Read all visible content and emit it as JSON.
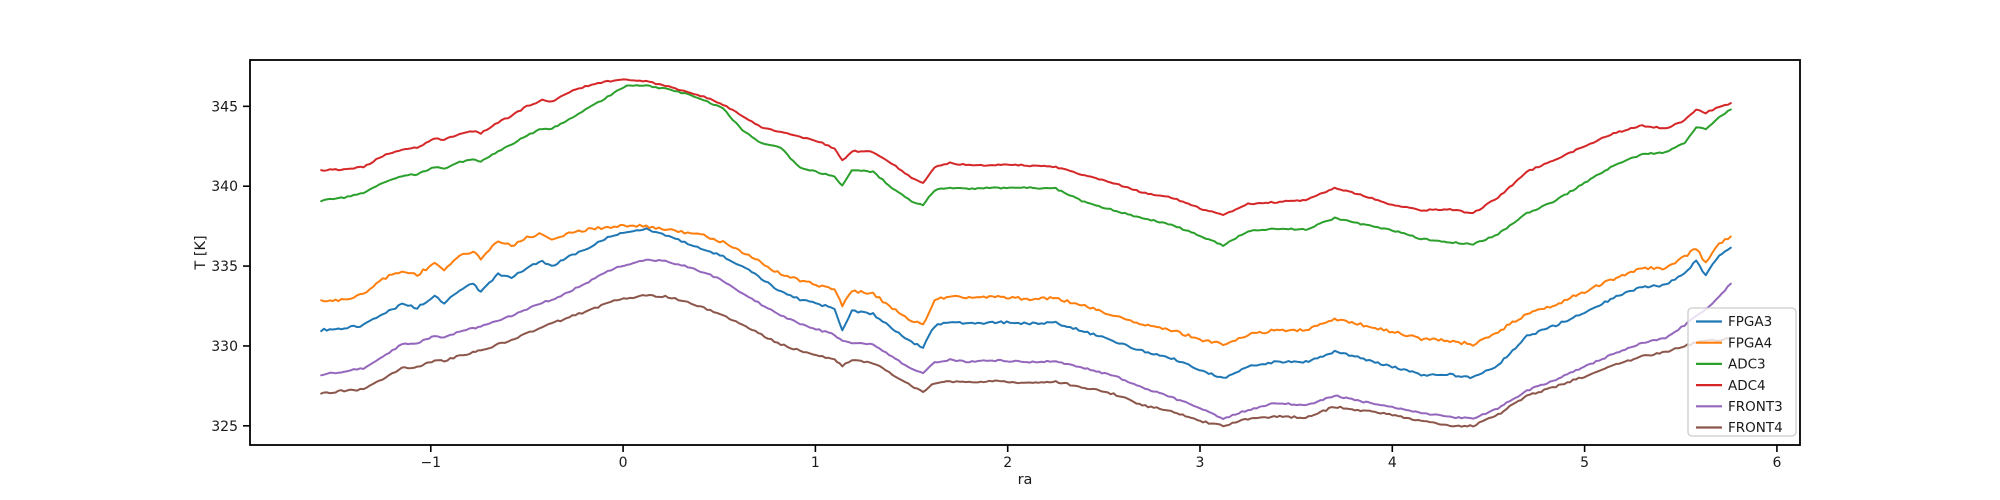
{
  "figure": {
    "background": "#ffffff",
    "text_color": "#1a1a1a",
    "spine_color": "#000000"
  },
  "chart_data": {
    "type": "line",
    "title": "",
    "xlabel": "ra",
    "ylabel": "T [K]",
    "grid": false,
    "legend_position": "lower right",
    "xlim": [
      -1.94,
      6.12
    ],
    "ylim": [
      323.8,
      347.9
    ],
    "x_ticks": [
      -1,
      0,
      1,
      2,
      3,
      4,
      5,
      6
    ],
    "x_tick_labels": [
      "−1",
      "0",
      "1",
      "2",
      "3",
      "4",
      "5",
      "6"
    ],
    "y_ticks": [
      325,
      330,
      335,
      340,
      345
    ],
    "y_tick_labels": [
      "325",
      "330",
      "335",
      "340",
      "345"
    ],
    "x": [
      -1.57,
      -1.45,
      -1.35,
      -1.25,
      -1.15,
      -1.07,
      -0.98,
      -0.93,
      -0.85,
      -0.78,
      -0.74,
      -0.65,
      -0.58,
      -0.5,
      -0.42,
      -0.37,
      -0.28,
      -0.18,
      -0.08,
      0.02,
      0.12,
      0.22,
      0.32,
      0.42,
      0.52,
      0.62,
      0.72,
      0.82,
      0.92,
      1.02,
      1.1,
      1.14,
      1.19,
      1.3,
      1.4,
      1.5,
      1.56,
      1.62,
      1.7,
      1.8,
      1.95,
      2.1,
      2.25,
      2.4,
      2.55,
      2.7,
      2.85,
      3.0,
      3.12,
      3.25,
      3.4,
      3.55,
      3.7,
      3.85,
      4.0,
      4.15,
      4.3,
      4.42,
      4.55,
      4.7,
      4.85,
      5.0,
      5.15,
      5.3,
      5.42,
      5.52,
      5.58,
      5.63,
      5.7,
      5.76
    ],
    "series": [
      {
        "name": "FPGA3",
        "color": "#1f77b4",
        "noise": 0.07,
        "values": [
          331.0,
          331.1,
          331.3,
          332.0,
          332.6,
          332.4,
          333.1,
          332.7,
          333.5,
          333.9,
          333.4,
          334.5,
          334.3,
          334.9,
          335.3,
          335.0,
          335.6,
          336.1,
          336.8,
          337.1,
          337.3,
          336.9,
          336.5,
          336.0,
          335.6,
          335.0,
          334.2,
          333.4,
          332.9,
          332.6,
          332.35,
          331.0,
          332.2,
          332.0,
          331.1,
          330.25,
          329.9,
          331.25,
          331.5,
          331.4,
          331.5,
          331.4,
          331.45,
          330.9,
          330.3,
          329.7,
          329.25,
          328.5,
          327.95,
          328.7,
          329.0,
          329.0,
          329.65,
          329.2,
          328.7,
          328.2,
          328.2,
          328.0,
          328.8,
          330.6,
          331.3,
          332.1,
          333.0,
          333.7,
          333.8,
          334.6,
          335.3,
          334.4,
          335.7,
          336.15
        ]
      },
      {
        "name": "FPGA4",
        "color": "#ff7f0e",
        "noise": 0.09,
        "values": [
          332.8,
          332.9,
          333.3,
          334.2,
          334.7,
          334.45,
          335.2,
          334.75,
          335.6,
          335.95,
          335.4,
          336.6,
          336.25,
          336.8,
          337.05,
          336.65,
          337.1,
          337.3,
          337.45,
          337.55,
          337.5,
          337.3,
          337.1,
          336.9,
          336.5,
          335.9,
          335.2,
          334.5,
          334.1,
          333.8,
          333.6,
          332.5,
          333.45,
          333.25,
          332.4,
          331.6,
          331.3,
          332.9,
          333.1,
          333.0,
          333.05,
          332.95,
          333.0,
          332.5,
          331.9,
          331.4,
          331.0,
          330.4,
          330.1,
          330.7,
          331.0,
          331.0,
          331.7,
          331.3,
          330.9,
          330.45,
          330.3,
          330.1,
          330.9,
          332.0,
          332.6,
          333.4,
          334.2,
          334.9,
          334.8,
          335.6,
          336.1,
          335.2,
          336.4,
          336.85
        ]
      },
      {
        "name": "ADC3",
        "color": "#2ca02c",
        "noise": 0.045,
        "values": [
          339.1,
          339.3,
          339.6,
          340.2,
          340.65,
          340.75,
          341.2,
          341.1,
          341.5,
          341.7,
          341.55,
          342.2,
          342.6,
          343.2,
          343.6,
          343.6,
          344.2,
          344.9,
          345.6,
          346.3,
          346.3,
          346.1,
          345.8,
          345.4,
          344.85,
          343.5,
          342.7,
          342.4,
          341.15,
          340.85,
          340.6,
          340.05,
          341.0,
          340.9,
          339.9,
          339.05,
          338.85,
          339.75,
          339.9,
          339.85,
          339.9,
          339.9,
          339.85,
          339.0,
          338.5,
          338.0,
          337.6,
          336.9,
          336.3,
          337.2,
          337.35,
          337.3,
          338.0,
          337.6,
          337.25,
          336.7,
          336.5,
          336.35,
          337.0,
          338.3,
          339.1,
          340.2,
          341.3,
          342.0,
          342.1,
          342.7,
          343.7,
          343.6,
          344.3,
          344.8
        ]
      },
      {
        "name": "ADC4",
        "color": "#d62728",
        "noise": 0.045,
        "values": [
          341.0,
          341.05,
          341.2,
          341.9,
          342.3,
          342.4,
          343.0,
          342.9,
          343.3,
          343.45,
          343.3,
          344.0,
          344.4,
          345.0,
          345.4,
          345.3,
          345.9,
          346.3,
          346.55,
          346.7,
          346.55,
          346.3,
          345.95,
          345.6,
          345.1,
          344.4,
          343.7,
          343.4,
          343.1,
          342.8,
          342.35,
          341.6,
          342.2,
          342.15,
          341.4,
          340.55,
          340.2,
          341.2,
          341.45,
          341.3,
          341.35,
          341.3,
          341.2,
          340.7,
          340.2,
          339.6,
          339.3,
          338.6,
          338.2,
          338.9,
          339.0,
          339.15,
          339.9,
          339.4,
          338.85,
          338.5,
          338.55,
          338.3,
          339.3,
          340.9,
          341.7,
          342.5,
          343.3,
          343.8,
          343.6,
          344.1,
          344.8,
          344.6,
          344.95,
          345.2
        ]
      },
      {
        "name": "FRONT3",
        "color": "#9467bd",
        "noise": 0.05,
        "values": [
          328.2,
          328.4,
          328.6,
          329.3,
          330.1,
          330.2,
          330.6,
          330.55,
          330.9,
          331.1,
          331.2,
          331.6,
          331.9,
          332.3,
          332.7,
          332.9,
          333.4,
          334.0,
          334.7,
          335.1,
          335.4,
          335.3,
          335.0,
          334.6,
          334.1,
          333.3,
          332.6,
          331.9,
          331.4,
          331.0,
          330.7,
          330.3,
          330.2,
          330.1,
          329.3,
          328.6,
          328.3,
          328.95,
          329.15,
          329.0,
          329.1,
          329.0,
          329.05,
          328.6,
          328.15,
          327.4,
          326.8,
          326.1,
          325.45,
          326.0,
          326.45,
          326.25,
          326.9,
          326.5,
          326.2,
          325.8,
          325.55,
          325.45,
          326.1,
          327.2,
          327.9,
          328.7,
          329.5,
          330.2,
          330.5,
          331.3,
          331.9,
          332.3,
          333.1,
          333.9
        ]
      },
      {
        "name": "FRONT4",
        "color": "#8c564b",
        "noise": 0.06,
        "values": [
          327.0,
          327.2,
          327.3,
          327.9,
          328.6,
          328.65,
          329.1,
          329.05,
          329.4,
          329.6,
          329.7,
          330.1,
          330.4,
          330.8,
          331.2,
          331.4,
          331.8,
          332.2,
          332.7,
          333.0,
          333.15,
          333.1,
          332.8,
          332.4,
          331.9,
          331.3,
          330.7,
          330.1,
          329.7,
          329.4,
          329.15,
          328.75,
          329.1,
          328.95,
          328.2,
          327.5,
          327.15,
          327.65,
          327.8,
          327.7,
          327.8,
          327.7,
          327.75,
          327.4,
          327.0,
          326.3,
          325.9,
          325.3,
          325.0,
          325.45,
          325.6,
          325.5,
          326.2,
          325.95,
          325.7,
          325.3,
          325.0,
          325.0,
          325.7,
          326.9,
          327.45,
          328.1,
          328.8,
          329.35,
          329.6,
          330.0,
          330.2,
          330.3,
          330.4,
          330.45
        ]
      }
    ],
    "legend": {
      "facecolor": "rgba(255,255,255,0.8)",
      "edgecolor": "#cccccc"
    }
  }
}
